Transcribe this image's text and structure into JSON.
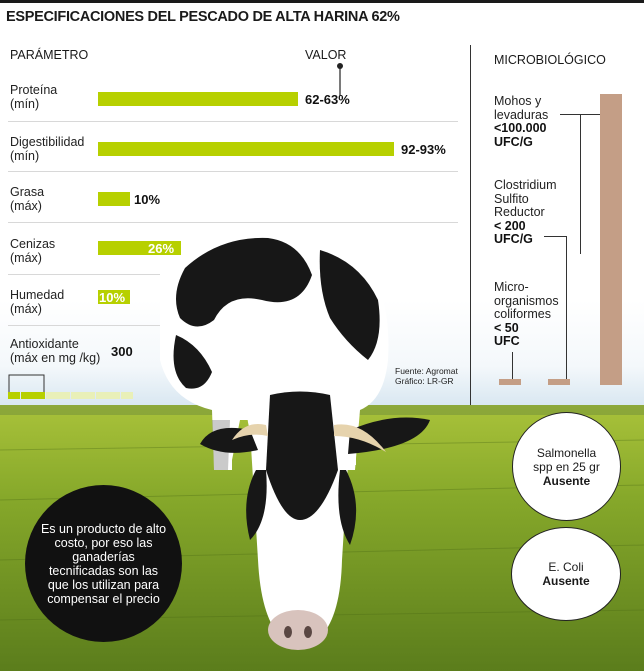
{
  "title": "ESPECIFICACIONES DEL PESCADO DE ALTA HARINA 62%",
  "headers": {
    "parameter": "PARÁMETRO",
    "value": "VALOR",
    "micro": "MICROBIOLÓGICO"
  },
  "parameters": [
    {
      "name": "Proteína",
      "qualifier": "(mín)",
      "value_label": "62-63%"
    },
    {
      "name": "Digestibilidad",
      "qualifier": "(mín)",
      "value_label": "92-93%"
    },
    {
      "name": "Grasa",
      "qualifier": "(máx)",
      "value_label": "10%"
    },
    {
      "name": "Cenizas",
      "qualifier": "(máx)",
      "value_label": "26%"
    },
    {
      "name": "Humedad",
      "qualifier": "(máx)",
      "value_label": "10%"
    },
    {
      "name": "Antioxidante",
      "qualifier": "(máx en mg /kg)",
      "value_label": "300"
    }
  ],
  "chart_data": {
    "type": "bar",
    "title": "ESPECIFICACIONES DEL PESCADO DE ALTA HARINA 62%",
    "categories": [
      "Proteína (mín)",
      "Digestibilidad (mín)",
      "Grasa (máx)",
      "Cenizas (máx)",
      "Humedad (máx)",
      "Antioxidante (máx en mg /kg)"
    ],
    "value_labels": [
      "62-63%",
      "92-93%",
      "10%",
      "26%",
      "10%",
      "300"
    ],
    "values": [
      62.5,
      92.5,
      10,
      26,
      10,
      300
    ],
    "units": [
      "%",
      "%",
      "%",
      "%",
      "%",
      "mg/kg"
    ],
    "bar_color": "#b7d000",
    "antioxidant_scale": {
      "segments_total": 10,
      "segments_filled": 3
    }
  },
  "microbiology": {
    "items": [
      {
        "name_lines": [
          "Mohos y",
          "levaduras"
        ],
        "value_lines": [
          "<100.000",
          "UFC/G"
        ]
      },
      {
        "name_lines": [
          "Clostridium",
          "Sulfito",
          "Reductor"
        ],
        "value_lines": [
          "< 200",
          "UFC/G"
        ]
      },
      {
        "name_lines": [
          "Micro-",
          "organismos",
          "coliformes"
        ],
        "value_lines": [
          "< 50",
          "UFC"
        ]
      }
    ],
    "bar_color": "#c49e86"
  },
  "absent_items": [
    {
      "lines": [
        "Salmonella",
        "spp en 25 gr"
      ],
      "status": "Ausente"
    },
    {
      "lines": [
        "E. Coli"
      ],
      "status": "Ausente"
    }
  ],
  "note": "Es un producto de alto costo, por eso las ganaderías tecnificadas son las que los utilizan para compensar el precio",
  "source": {
    "line1": "Fuente: Agromat",
    "line2": "Gráfico: LR-GR"
  }
}
